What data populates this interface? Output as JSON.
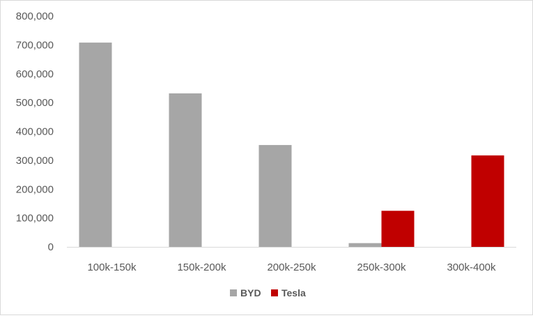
{
  "chart_data": {
    "type": "bar",
    "categories": [
      "100k-150k",
      "150k-200k",
      "200k-250k",
      "250k-300k",
      "300k-400k"
    ],
    "series": [
      {
        "name": "BYD",
        "color": "#a6a6a6",
        "values": [
          708000,
          532000,
          353000,
          13000,
          0
        ]
      },
      {
        "name": "Tesla",
        "color": "#c00000",
        "values": [
          0,
          0,
          0,
          125000,
          317000
        ]
      }
    ],
    "ylim": [
      0,
      800000
    ],
    "yticks": [
      "0",
      "100,000",
      "200,000",
      "300,000",
      "400,000",
      "500,000",
      "600,000",
      "700,000",
      "800,000"
    ],
    "grid": false,
    "legend": "bottom-center"
  }
}
